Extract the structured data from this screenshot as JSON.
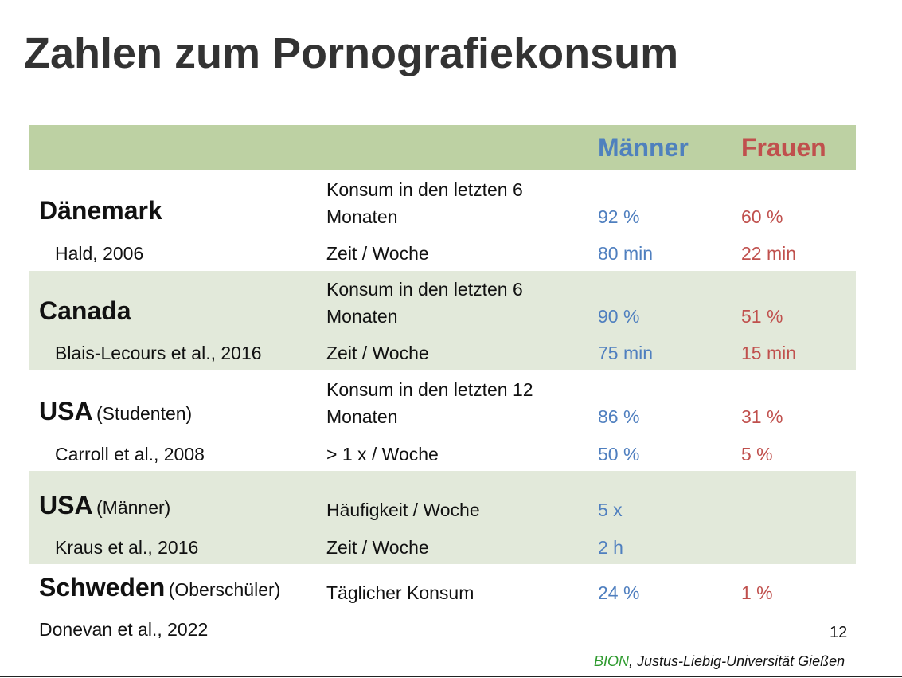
{
  "title": "Zahlen zum Pornografiekonsum",
  "table": {
    "header": [
      "Männer",
      "Frauen"
    ],
    "groups": [
      {
        "country": "Dänemark",
        "source": "Hald, 2006",
        "rows": [
          {
            "measure": "Konsum in den letzten 6 Monaten",
            "men": "92 %",
            "women": "60 %"
          },
          {
            "measure": "Zeit / Woche",
            "men": "80 min",
            "women": "22 min"
          }
        ]
      },
      {
        "country": "Canada",
        "source": "Blais-Lecours et al., 2016",
        "rows": [
          {
            "measure": "Konsum in den letzten 6 Monaten",
            "men": "90 %",
            "women": "51 %"
          },
          {
            "measure": "Zeit / Woche",
            "men": "75 min",
            "women": "15 min"
          }
        ]
      },
      {
        "country": "USA",
        "qualifier": "(Studenten)",
        "source": "Carroll et al., 2008",
        "rows": [
          {
            "measure": "Konsum in den letzten 12 Monaten",
            "men": "86 %",
            "women": "31 %"
          },
          {
            "measure": "> 1 x / Woche",
            "men": "50 %",
            "women": "5 %"
          }
        ]
      },
      {
        "country": "USA",
        "qualifier": "(Männer)",
        "source": "Kraus et al., 2016",
        "rows": [
          {
            "measure": "Häufigkeit / Woche",
            "men": "5 x"
          },
          {
            "measure": "Zeit / Woche",
            "men": "2 h"
          }
        ]
      },
      {
        "country": "Schweden",
        "qualifier": "(Oberschüler)",
        "source": "Donevan et al., 2022",
        "rows": [
          {
            "measure": "Täglicher Konsum",
            "men": "24 %",
            "women": "1 %"
          }
        ]
      }
    ]
  },
  "footer": {
    "page": "12",
    "org": "BION",
    "university": ", Justus-Liebig-Universität Gießen"
  }
}
